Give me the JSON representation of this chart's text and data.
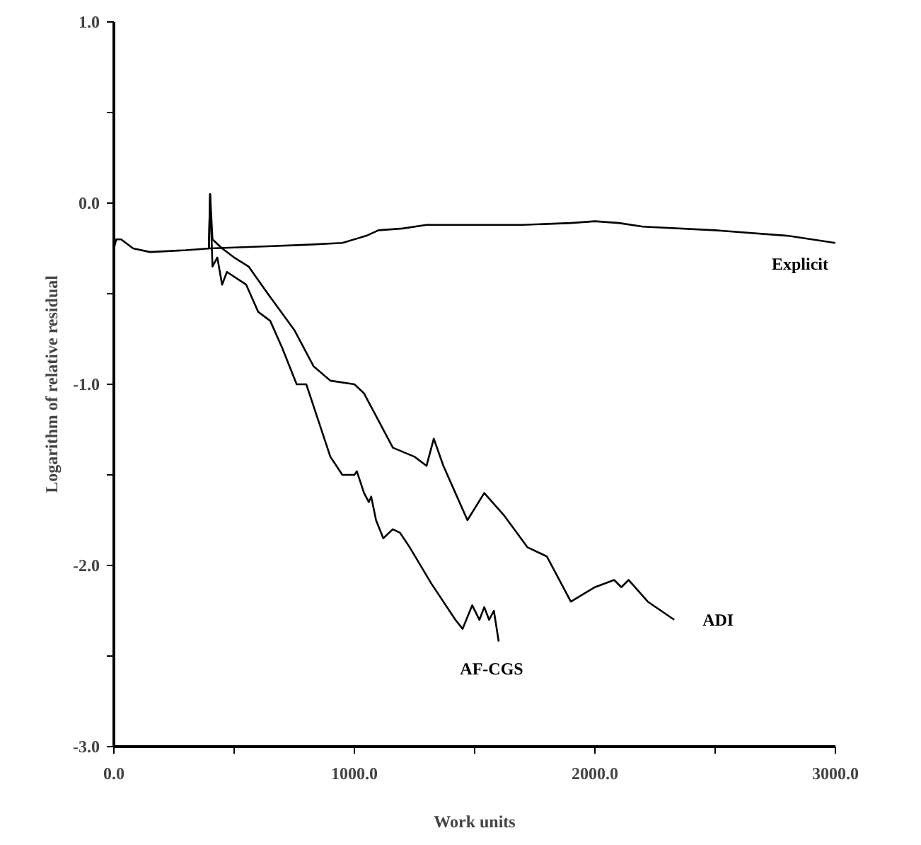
{
  "chart_data": {
    "type": "line",
    "xlabel": "Work units",
    "ylabel": "Logarithm of relative residual",
    "xlim": [
      0,
      3000
    ],
    "ylim": [
      -3.0,
      1.0
    ],
    "xticks": [
      {
        "value": 0,
        "label": "0.0"
      },
      {
        "value": 500,
        "label": null
      },
      {
        "value": 1000,
        "label": "1000.0"
      },
      {
        "value": 1500,
        "label": null
      },
      {
        "value": 2000,
        "label": "2000.0"
      },
      {
        "value": 2500,
        "label": null
      },
      {
        "value": 3000,
        "label": "3000.0"
      }
    ],
    "yticks": [
      {
        "value": -3,
        "label": "-3.0"
      },
      {
        "value": -2.5,
        "label": null
      },
      {
        "value": -2,
        "label": "-2.0"
      },
      {
        "value": -1.5,
        "label": null
      },
      {
        "value": -1,
        "label": "-1.0"
      },
      {
        "value": -0.5,
        "label": null
      },
      {
        "value": 0,
        "label": "0.0"
      },
      {
        "value": 0.5,
        "label": null
      },
      {
        "value": 1,
        "label": "1.0"
      }
    ],
    "grid": false,
    "line_style": "solid",
    "series": [
      {
        "name": "Explicit",
        "color": "#000000",
        "x": [
          0,
          10,
          30,
          80,
          150,
          300,
          400,
          600,
          800,
          950,
          1050,
          1100,
          1200,
          1300,
          1500,
          1700,
          1900,
          2000,
          2100,
          2200,
          2500,
          2800,
          3000
        ],
        "values": [
          -0.25,
          -0.2,
          -0.2,
          -0.25,
          -0.27,
          -0.26,
          -0.25,
          -0.24,
          -0.23,
          -0.22,
          -0.18,
          -0.15,
          -0.14,
          -0.12,
          -0.12,
          -0.12,
          -0.11,
          -0.1,
          -0.11,
          -0.13,
          -0.15,
          -0.18,
          -0.22
        ]
      },
      {
        "name": "ADI",
        "color": "#000000",
        "x": [
          395,
          400,
          410,
          450,
          500,
          560,
          640,
          750,
          830,
          900,
          1000,
          1040,
          1100,
          1160,
          1250,
          1300,
          1330,
          1370,
          1420,
          1470,
          1540,
          1620,
          1720,
          1800,
          1900,
          2000,
          2080,
          2110,
          2140,
          2220,
          2330
        ],
        "values": [
          -0.25,
          0.05,
          -0.2,
          -0.25,
          -0.3,
          -0.35,
          -0.5,
          -0.7,
          -0.9,
          -0.98,
          -1.0,
          -1.05,
          -1.2,
          -1.35,
          -1.4,
          -1.45,
          -1.3,
          -1.45,
          -1.6,
          -1.75,
          -1.6,
          -1.72,
          -1.9,
          -1.95,
          -2.2,
          -2.12,
          -2.08,
          -2.12,
          -2.08,
          -2.2,
          -2.3
        ]
      },
      {
        "name": "AF-CGS",
        "color": "#000000",
        "x": [
          395,
          400,
          410,
          430,
          450,
          470,
          550,
          600,
          650,
          700,
          760,
          800,
          850,
          900,
          950,
          1000,
          1010,
          1040,
          1060,
          1070,
          1090,
          1120,
          1160,
          1190,
          1230,
          1320,
          1420,
          1450,
          1490,
          1520,
          1540,
          1560,
          1580,
          1600
        ],
        "values": [
          -0.25,
          0.05,
          -0.35,
          -0.3,
          -0.45,
          -0.38,
          -0.45,
          -0.6,
          -0.65,
          -0.8,
          -1.0,
          -1.0,
          -1.2,
          -1.4,
          -1.5,
          -1.5,
          -1.48,
          -1.6,
          -1.65,
          -1.62,
          -1.75,
          -1.85,
          -1.8,
          -1.82,
          -1.9,
          -2.1,
          -2.3,
          -2.35,
          -2.22,
          -2.3,
          -2.23,
          -2.3,
          -2.25,
          -2.42
        ]
      }
    ]
  }
}
